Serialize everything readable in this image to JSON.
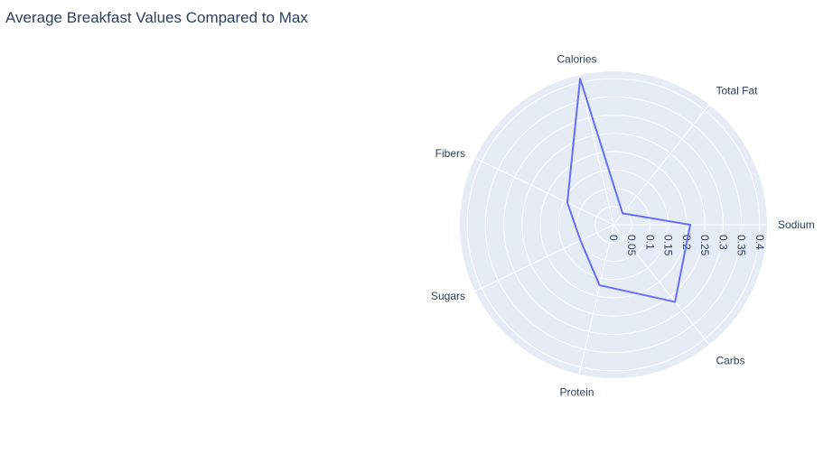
{
  "title": "Average Breakfast Values Compared to Max",
  "colors": {
    "plot_bg": "#e5ecf6",
    "grid": "#ffffff",
    "line": "#636efa",
    "text": "#2a3f5f"
  },
  "chart_data": {
    "type": "radar",
    "title": "Average Breakfast Values Compared to Max",
    "categories": [
      "Sodium",
      "Total Fat",
      "Calories",
      "Fibers",
      "Sugars",
      "Protein",
      "Carbs"
    ],
    "series": [
      {
        "values": [
          0.21,
          0.04,
          0.41,
          0.14,
          0.1,
          0.17,
          0.27
        ]
      }
    ],
    "radial_range": [
      0,
      0.42
    ],
    "radial_ticks": [
      "0",
      "0.05",
      "0.1",
      "0.15",
      "0.2",
      "0.25",
      "0.3",
      "0.35",
      "0.4"
    ],
    "grid": true
  }
}
